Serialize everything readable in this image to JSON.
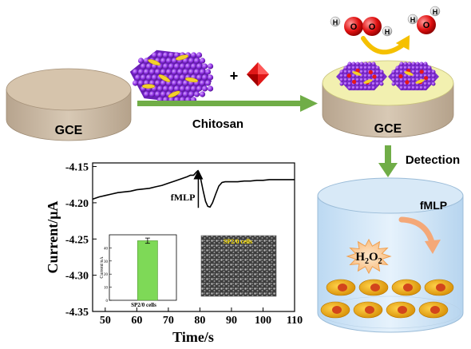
{
  "labels": {
    "gce_left": "GCE",
    "gce_right": "GCE",
    "plus": "+",
    "chitosan": "Chitosan",
    "detection": "Detection",
    "fmlp_beaker": "fMLP",
    "h2o2_main": "H",
    "h2o2_sub1": "2",
    "h2o2_o": "O",
    "h2o2_sub2": "2",
    "atom_h": "H",
    "atom_o": "O"
  },
  "chart_data": {
    "type": "line",
    "xlabel": "Time/s",
    "ylabel": "Current/μA",
    "xlim": [
      46,
      110
    ],
    "ylim": [
      -4.35,
      -4.145
    ],
    "xticks": [
      50,
      60,
      70,
      80,
      90,
      100,
      110
    ],
    "yticks": [
      -4.15,
      -4.2,
      -4.25,
      -4.3,
      -4.35
    ],
    "ytick_labels": [
      "-4.15",
      "-4.20",
      "-4.25",
      "-4.30",
      "-4.35"
    ],
    "annotation": "fMLP",
    "annotation_x": 79.5,
    "series": [
      {
        "x": [
          46,
          48,
          50,
          52,
          54,
          56,
          58,
          60,
          62,
          64,
          66,
          68,
          70,
          72,
          74,
          76,
          77,
          78,
          78.8,
          79.3,
          79.8,
          80.3,
          81,
          81.8,
          82.5,
          83.2,
          84,
          85,
          86,
          87,
          88,
          90,
          92,
          94,
          96,
          98,
          100,
          102,
          104,
          106,
          108,
          110
        ],
        "y": [
          -4.195,
          -4.192,
          -4.19,
          -4.188,
          -4.186,
          -4.185,
          -4.184,
          -4.182,
          -4.181,
          -4.18,
          -4.178,
          -4.176,
          -4.173,
          -4.17,
          -4.167,
          -4.164,
          -4.162,
          -4.162,
          -4.158,
          -4.156,
          -4.16,
          -4.168,
          -4.183,
          -4.198,
          -4.205,
          -4.206,
          -4.2,
          -4.188,
          -4.177,
          -4.172,
          -4.171,
          -4.171,
          -4.171,
          -4.17,
          -4.17,
          -4.169,
          -4.169,
          -4.168,
          -4.168,
          -4.168,
          -4.168,
          -4.168
        ]
      }
    ]
  },
  "inset_bar": {
    "type": "bar",
    "ylabel": "Current/nA",
    "category": "SP2/0 cells",
    "value": 45.5,
    "error": 2,
    "ylim": [
      0,
      50
    ],
    "yticks": [
      0,
      10,
      20,
      30,
      40
    ],
    "bar_color": "#7ed957"
  },
  "inset_image": {
    "label": "SP2/0 cells"
  }
}
